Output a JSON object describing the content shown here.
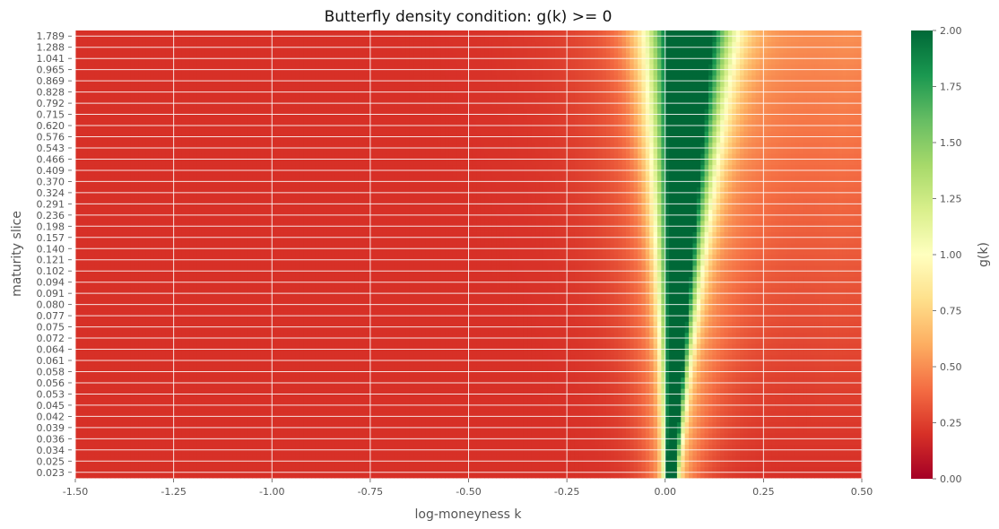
{
  "chart_data": {
    "type": "heatmap",
    "title": "Butterfly density condition: g(k) >= 0",
    "xlabel": "log-moneyness k",
    "ylabel": "maturity slice",
    "xlim": [
      -1.5,
      0.5
    ],
    "x_ticks": [
      "-1.50",
      "-1.25",
      "-1.00",
      "-0.75",
      "-0.50",
      "-0.25",
      "0.00",
      "0.25",
      "0.50"
    ],
    "x_tick_values": [
      -1.5,
      -1.25,
      -1.0,
      -0.75,
      -0.5,
      -0.25,
      0.0,
      0.25,
      0.5
    ],
    "maturities_bottom_to_top": [
      "0.023",
      "0.025",
      "0.034",
      "0.036",
      "0.039",
      "0.042",
      "0.045",
      "0.053",
      "0.056",
      "0.058",
      "0.061",
      "0.064",
      "0.072",
      "0.075",
      "0.077",
      "0.080",
      "0.091",
      "0.094",
      "0.102",
      "0.121",
      "0.140",
      "0.157",
      "0.198",
      "0.236",
      "0.291",
      "0.324",
      "0.370",
      "0.409",
      "0.466",
      "0.543",
      "0.576",
      "0.620",
      "0.715",
      "0.792",
      "0.828",
      "0.869",
      "0.965",
      "1.041",
      "1.288",
      "1.789"
    ],
    "colorbar": {
      "label": "g(k)",
      "range": [
        0.0,
        2.0
      ],
      "ticks": [
        "0.00",
        "0.25",
        "0.50",
        "0.75",
        "1.00",
        "1.25",
        "1.50",
        "1.75",
        "2.00"
      ],
      "tick_values": [
        0.0,
        0.25,
        0.5,
        0.75,
        1.0,
        1.25,
        1.5,
        1.75,
        2.0
      ],
      "colormap": "RdYlGn"
    },
    "value_model": {
      "description": "approximate g(k) per slice: far-wing value ~0.2, dips to ~1.0 band near the peak, peaks above 2.0 near k slightly positive",
      "peak_center_short": 0.015,
      "peak_center_long": 0.06,
      "peak_width_short": 0.012,
      "peak_width_long": 0.07,
      "far_value": 0.2,
      "right_wing_long": 0.45
    },
    "grid": true
  },
  "colors": {
    "background": "#ffffff",
    "grid": "#ffffff",
    "text": "#555555",
    "title": "#111111"
  }
}
